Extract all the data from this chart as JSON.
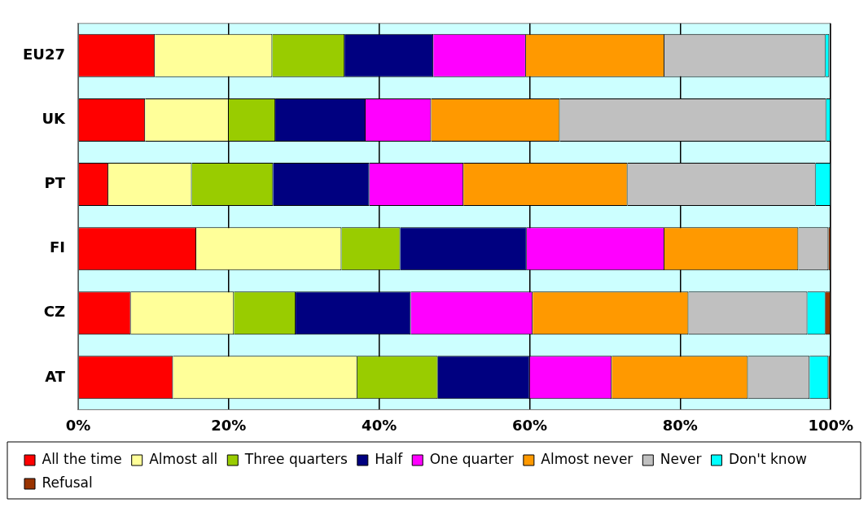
{
  "chart_data": {
    "type": "bar",
    "orientation": "horizontal",
    "stacked": true,
    "categories": [
      "EU27",
      "UK",
      "PT",
      "FI",
      "CZ",
      "AT"
    ],
    "series": [
      {
        "name": "All the time",
        "color": "#ff0000",
        "values": [
          10.2,
          8.9,
          4.0,
          15.7,
          7.0,
          12.6
        ]
      },
      {
        "name": "Almost all",
        "color": "#ffff99",
        "values": [
          15.6,
          11.1,
          11.1,
          19.3,
          13.7,
          24.5
        ]
      },
      {
        "name": "Three quarters",
        "color": "#99cc00",
        "values": [
          9.6,
          6.2,
          10.8,
          7.8,
          8.2,
          10.7
        ]
      },
      {
        "name": "Half",
        "color": "#000080",
        "values": [
          11.8,
          12.0,
          12.8,
          16.8,
          15.3,
          12.2
        ]
      },
      {
        "name": "One quarter",
        "color": "#ff00ff",
        "values": [
          12.3,
          8.7,
          12.5,
          18.3,
          16.2,
          10.9
        ]
      },
      {
        "name": "Almost never",
        "color": "#ff9900",
        "values": [
          18.4,
          17.1,
          21.8,
          17.8,
          20.7,
          18.1
        ]
      },
      {
        "name": "Never",
        "color": "#c0c0c0",
        "values": [
          21.4,
          35.4,
          25.0,
          4.0,
          15.8,
          8.2
        ]
      },
      {
        "name": "Don't know",
        "color": "#00ffff",
        "values": [
          0.5,
          0.6,
          2.0,
          0.0,
          2.4,
          2.5
        ]
      },
      {
        "name": "Refusal",
        "color": "#993300",
        "values": [
          null,
          0.0,
          0.0,
          0.3,
          0.7,
          0.3
        ]
      }
    ],
    "xlim": [
      0,
      100
    ],
    "xticks": [
      {
        "value": 0,
        "label": "0%"
      },
      {
        "value": 20,
        "label": "20%"
      },
      {
        "value": 40,
        "label": "40%"
      },
      {
        "value": 60,
        "label": "60%"
      },
      {
        "value": 80,
        "label": "80%"
      },
      {
        "value": 100,
        "label": "100%"
      }
    ],
    "grid": "x",
    "legend": "bottom"
  }
}
